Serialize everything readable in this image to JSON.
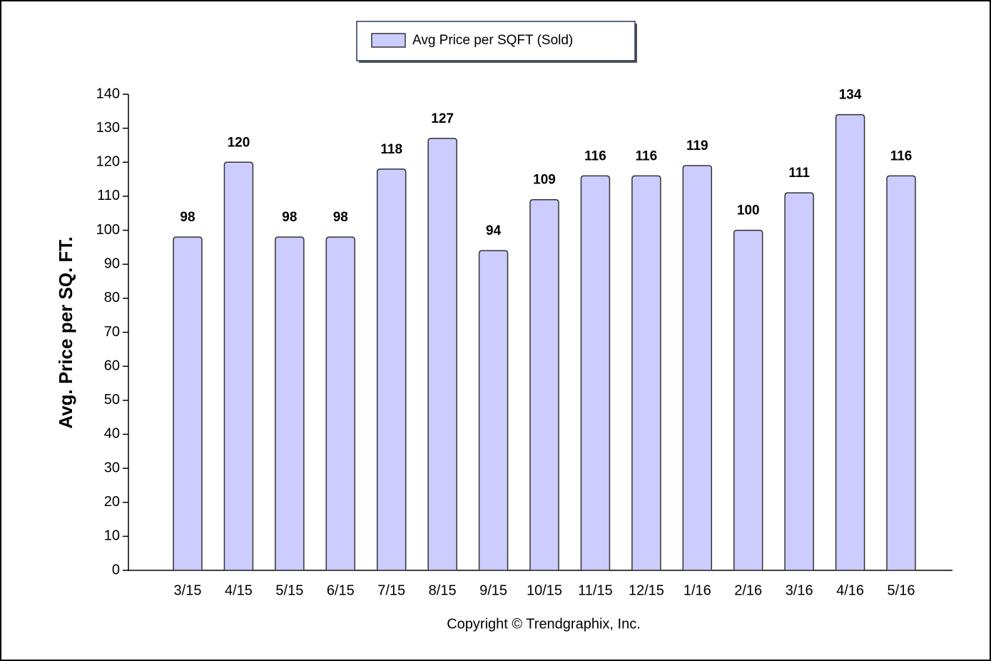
{
  "chart_data": {
    "type": "bar",
    "legend_label": "Avg Price per SQFT (Sold)",
    "y_label": "Avg. Price per SQ. FT.",
    "annotation": "Copyright © Trendgraphix, Inc.",
    "categories": [
      "3/15",
      "4/15",
      "5/15",
      "6/15",
      "7/15",
      "8/15",
      "9/15",
      "10/15",
      "11/15",
      "12/15",
      "1/16",
      "2/16",
      "3/16",
      "4/16",
      "5/16"
    ],
    "values": [
      98,
      120,
      98,
      98,
      118,
      127,
      94,
      109,
      116,
      116,
      119,
      100,
      111,
      134,
      116
    ],
    "color": "#ccccff",
    "ylim": [
      0,
      140
    ],
    "yticks": [
      0,
      10,
      20,
      30,
      40,
      50,
      60,
      70,
      80,
      90,
      100,
      110,
      120,
      130,
      140
    ],
    "grid": false,
    "legend_position": "top"
  }
}
